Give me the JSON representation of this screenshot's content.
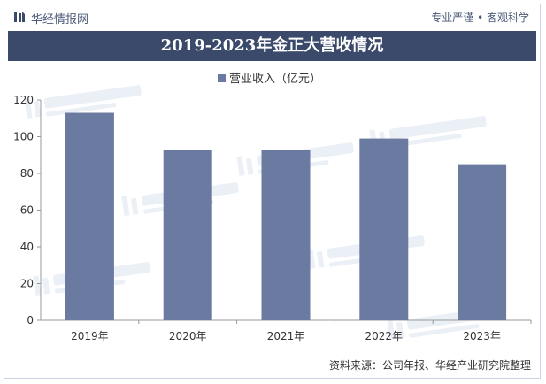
{
  "header": {
    "brand": "华经情报网",
    "slogan": "专业严谨 • 客观科学"
  },
  "footer": {
    "source": "资料来源：公司年报、华经产业研究院整理"
  },
  "chart_data": {
    "type": "bar",
    "title": "2019-2023年金正大营收情况",
    "categories": [
      "2019年",
      "2020年",
      "2021年",
      "2022年",
      "2023年"
    ],
    "series": [
      {
        "name": "营业收入（亿元）",
        "values": [
          113,
          93,
          93,
          99,
          85
        ]
      }
    ],
    "ylim": [
      0,
      120
    ],
    "yticks": [
      0,
      20,
      40,
      60,
      80,
      100,
      120
    ],
    "legend": "top-center",
    "grid": false,
    "colors": {
      "bar": "#6a7aa0",
      "title_bg": "#3b4a6b"
    }
  }
}
